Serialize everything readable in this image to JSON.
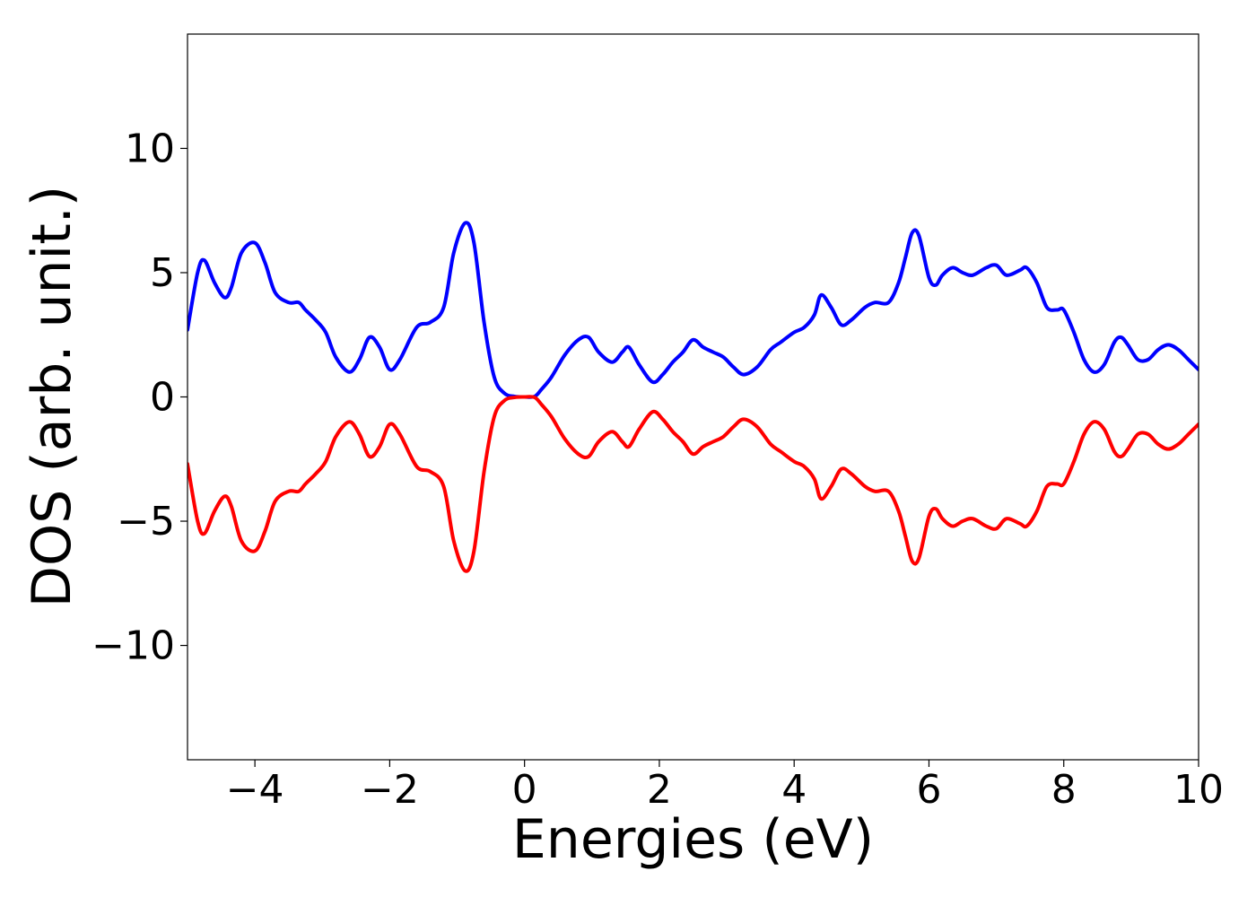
{
  "chart_data": {
    "type": "line",
    "title": "",
    "xlabel": "Energies (eV)",
    "ylabel": "DOS (arb. unit.)",
    "xlim": [
      -5,
      10
    ],
    "ylim": [
      -14.6,
      14.6
    ],
    "grid": false,
    "legend": "none",
    "x_ticks": [
      {
        "value": -4,
        "label": "−4"
      },
      {
        "value": -2,
        "label": "−2"
      },
      {
        "value": 0,
        "label": "0"
      },
      {
        "value": 2,
        "label": "2"
      },
      {
        "value": 4,
        "label": "4"
      },
      {
        "value": 6,
        "label": "6"
      },
      {
        "value": 8,
        "label": "8"
      },
      {
        "value": 10,
        "label": "10"
      }
    ],
    "y_ticks": [
      {
        "value": -10,
        "label": "−10"
      },
      {
        "value": -5,
        "label": "−5"
      },
      {
        "value": 0,
        "label": "0"
      },
      {
        "value": 5,
        "label": "5"
      },
      {
        "value": 10,
        "label": "10"
      }
    ],
    "series": [
      {
        "color": "#0000ff",
        "x": [
          -5.0,
          -4.85,
          -4.75,
          -4.6,
          -4.45,
          -4.35,
          -4.2,
          -4.0,
          -3.85,
          -3.7,
          -3.5,
          -3.35,
          -3.25,
          -3.1,
          -2.95,
          -2.8,
          -2.6,
          -2.45,
          -2.3,
          -2.15,
          -2.0,
          -1.85,
          -1.6,
          -1.4,
          -1.2,
          -1.05,
          -0.88,
          -0.75,
          -0.6,
          -0.45,
          -0.3,
          -0.15,
          0.0,
          0.15,
          0.25,
          0.4,
          0.6,
          0.8,
          0.95,
          1.1,
          1.3,
          1.45,
          1.55,
          1.7,
          1.9,
          2.05,
          2.2,
          2.35,
          2.5,
          2.65,
          2.8,
          2.95,
          3.1,
          3.25,
          3.45,
          3.65,
          3.8,
          4.0,
          4.15,
          4.3,
          4.4,
          4.55,
          4.7,
          4.85,
          5.05,
          5.2,
          5.4,
          5.55,
          5.65,
          5.75,
          5.85,
          6.0,
          6.1,
          6.2,
          6.35,
          6.5,
          6.65,
          6.85,
          7.0,
          7.15,
          7.35,
          7.45,
          7.6,
          7.75,
          7.9,
          8.0,
          8.15,
          8.3,
          8.45,
          8.6,
          8.75,
          8.85,
          8.95,
          9.1,
          9.25,
          9.4,
          9.55,
          9.7,
          9.85,
          10.0
        ],
        "y": [
          2.7,
          5.0,
          5.5,
          4.6,
          4.0,
          4.4,
          5.8,
          6.2,
          5.4,
          4.2,
          3.8,
          3.8,
          3.5,
          3.1,
          2.6,
          1.6,
          1.0,
          1.5,
          2.4,
          2.0,
          1.1,
          1.5,
          2.8,
          3.0,
          3.6,
          5.8,
          7.0,
          6.2,
          3.0,
          0.8,
          0.15,
          0.02,
          0.0,
          0.02,
          0.3,
          0.8,
          1.7,
          2.3,
          2.4,
          1.8,
          1.4,
          1.8,
          2.0,
          1.3,
          0.6,
          0.9,
          1.4,
          1.8,
          2.3,
          2.0,
          1.8,
          1.6,
          1.2,
          0.9,
          1.2,
          1.9,
          2.2,
          2.6,
          2.8,
          3.3,
          4.1,
          3.6,
          2.9,
          3.1,
          3.6,
          3.8,
          3.8,
          4.6,
          5.6,
          6.6,
          6.5,
          4.8,
          4.5,
          4.9,
          5.2,
          5.0,
          4.9,
          5.2,
          5.3,
          4.9,
          5.1,
          5.2,
          4.6,
          3.6,
          3.5,
          3.5,
          2.6,
          1.5,
          1.0,
          1.3,
          2.2,
          2.4,
          2.1,
          1.5,
          1.5,
          1.9,
          2.1,
          1.9,
          1.5,
          1.1
        ]
      },
      {
        "color": "#ff0000",
        "x": [
          -5.0,
          -4.85,
          -4.75,
          -4.6,
          -4.45,
          -4.35,
          -4.2,
          -4.0,
          -3.85,
          -3.7,
          -3.5,
          -3.35,
          -3.25,
          -3.1,
          -2.95,
          -2.8,
          -2.6,
          -2.45,
          -2.3,
          -2.15,
          -2.0,
          -1.85,
          -1.6,
          -1.4,
          -1.2,
          -1.05,
          -0.88,
          -0.75,
          -0.6,
          -0.45,
          -0.3,
          -0.15,
          0.0,
          0.15,
          0.25,
          0.4,
          0.6,
          0.8,
          0.95,
          1.1,
          1.3,
          1.45,
          1.55,
          1.7,
          1.9,
          2.05,
          2.2,
          2.35,
          2.5,
          2.65,
          2.8,
          2.95,
          3.1,
          3.25,
          3.45,
          3.65,
          3.8,
          4.0,
          4.15,
          4.3,
          4.4,
          4.55,
          4.7,
          4.85,
          5.05,
          5.2,
          5.4,
          5.55,
          5.65,
          5.75,
          5.85,
          6.0,
          6.1,
          6.2,
          6.35,
          6.5,
          6.65,
          6.85,
          7.0,
          7.15,
          7.35,
          7.45,
          7.6,
          7.75,
          7.9,
          8.0,
          8.15,
          8.3,
          8.45,
          8.6,
          8.75,
          8.85,
          8.95,
          9.1,
          9.25,
          9.4,
          9.55,
          9.7,
          9.85,
          10.0
        ],
        "y": [
          -2.7,
          -5.0,
          -5.5,
          -4.6,
          -4.0,
          -4.4,
          -5.8,
          -6.2,
          -5.4,
          -4.2,
          -3.8,
          -3.8,
          -3.5,
          -3.1,
          -2.6,
          -1.6,
          -1.0,
          -1.5,
          -2.4,
          -2.0,
          -1.1,
          -1.5,
          -2.8,
          -3.0,
          -3.6,
          -5.8,
          -7.0,
          -6.2,
          -3.0,
          -0.8,
          -0.15,
          -0.02,
          0.0,
          -0.02,
          -0.3,
          -0.8,
          -1.7,
          -2.3,
          -2.4,
          -1.8,
          -1.4,
          -1.8,
          -2.0,
          -1.3,
          -0.6,
          -0.9,
          -1.4,
          -1.8,
          -2.3,
          -2.0,
          -1.8,
          -1.6,
          -1.2,
          -0.9,
          -1.2,
          -1.9,
          -2.2,
          -2.6,
          -2.8,
          -3.3,
          -4.1,
          -3.6,
          -2.9,
          -3.1,
          -3.6,
          -3.8,
          -3.8,
          -4.6,
          -5.6,
          -6.6,
          -6.5,
          -4.8,
          -4.5,
          -4.9,
          -5.2,
          -5.0,
          -4.9,
          -5.2,
          -5.3,
          -4.9,
          -5.1,
          -5.2,
          -4.6,
          -3.6,
          -3.5,
          -3.5,
          -2.6,
          -1.5,
          -1.0,
          -1.3,
          -2.2,
          -2.4,
          -2.1,
          -1.5,
          -1.5,
          -1.9,
          -2.1,
          -1.9,
          -1.5,
          -1.1
        ]
      }
    ]
  }
}
